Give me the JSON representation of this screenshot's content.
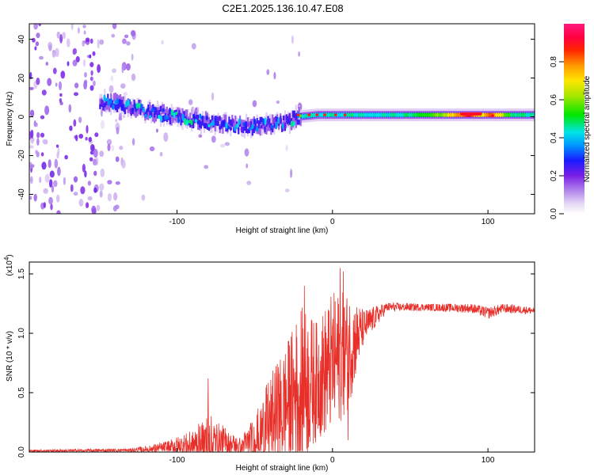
{
  "figure_title": "C2E1.2025.136.10.47.E08",
  "chart_data": [
    {
      "type": "heatmap",
      "title": "C2E1.2025.136.10.47.E08",
      "xlabel": "Height of straight line (km)",
      "ylabel": "Frequency (Hz)",
      "xlim": [
        -195,
        130
      ],
      "ylim": [
        -50,
        48
      ],
      "xticks": [
        -100,
        0,
        100
      ],
      "xtick_labels": [
        "-100",
        "0",
        "100"
      ],
      "yticks": [
        -40,
        -20,
        0,
        20,
        40
      ],
      "ytick_labels": [
        "-40",
        "-20",
        "0",
        "20",
        "40"
      ],
      "colorbar": {
        "label": "Normalized spectral amplitude",
        "range": [
          0,
          1
        ],
        "ticks": [
          0.0,
          0.2,
          0.4,
          0.6,
          0.8
        ],
        "tick_labels": [
          "0.0",
          "0.2",
          "0.4",
          "0.6",
          "0.8"
        ],
        "colormap": "rainbow: white-lavender -> purple -> blue -> cyan -> green -> yellow -> orange -> red -> magenta"
      },
      "ridge_center_freq_hz": [
        {
          "x": -145,
          "f": 8
        },
        {
          "x": -130,
          "f": 5
        },
        {
          "x": -115,
          "f": 2
        },
        {
          "x": -100,
          "f": 0
        },
        {
          "x": -85,
          "f": -2
        },
        {
          "x": -70,
          "f": -4
        },
        {
          "x": -55,
          "f": -5
        },
        {
          "x": -40,
          "f": -4
        },
        {
          "x": -30,
          "f": -3
        },
        {
          "x": -22,
          "f": 0
        },
        {
          "x": -10,
          "f": 1
        },
        {
          "x": 0,
          "f": 1
        },
        {
          "x": 50,
          "f": 1
        },
        {
          "x": 100,
          "f": 1
        },
        {
          "x": 130,
          "f": 1
        }
      ],
      "ridge_amplitude": [
        {
          "x": -145,
          "a": 0.3
        },
        {
          "x": -120,
          "a": 0.35
        },
        {
          "x": -90,
          "a": 0.35
        },
        {
          "x": -60,
          "a": 0.3
        },
        {
          "x": -30,
          "a": 0.3
        },
        {
          "x": -20,
          "a": 0.45
        },
        {
          "x": 0,
          "a": 0.45
        },
        {
          "x": 40,
          "a": 0.45
        },
        {
          "x": 70,
          "a": 0.6
        },
        {
          "x": 88,
          "a": 0.95
        },
        {
          "x": 96,
          "a": 0.7
        },
        {
          "x": 103,
          "a": 0.85
        },
        {
          "x": 115,
          "a": 0.5
        },
        {
          "x": 130,
          "a": 0.45
        }
      ]
    },
    {
      "type": "line",
      "xlabel": "Height of straight line (km)",
      "ylabel": "SNR (10 * v/v)",
      "y_multiplier": "(x10",
      "y_multiplier_exp": "4",
      "y_multiplier_close": ")",
      "xlim": [
        -195,
        130
      ],
      "ylim": [
        0,
        1.6
      ],
      "xticks": [
        -100,
        0,
        100
      ],
      "xtick_labels": [
        "-100",
        "0",
        "100"
      ],
      "yticks": [
        0,
        0.5,
        1.0,
        1.5
      ],
      "ytick_labels": [
        "0.0",
        "0.5",
        "1.0",
        "1.5"
      ],
      "color": "#e8302a",
      "series": [
        {
          "name": "SNR",
          "envelope": [
            {
              "x": -195,
              "base": 0.01,
              "noise": 0.01
            },
            {
              "x": -130,
              "base": 0.015,
              "noise": 0.015
            },
            {
              "x": -110,
              "base": 0.03,
              "noise": 0.05
            },
            {
              "x": -90,
              "base": 0.06,
              "noise": 0.12
            },
            {
              "x": -80,
              "base": 0.08,
              "noise": 0.25
            },
            {
              "x": -70,
              "base": 0.07,
              "noise": 0.15
            },
            {
              "x": -60,
              "base": 0.04,
              "noise": 0.08
            },
            {
              "x": -50,
              "base": 0.1,
              "noise": 0.2
            },
            {
              "x": -40,
              "base": 0.25,
              "noise": 0.4
            },
            {
              "x": -30,
              "base": 0.4,
              "noise": 0.5
            },
            {
              "x": -20,
              "base": 0.55,
              "noise": 0.7
            },
            {
              "x": -10,
              "base": 0.6,
              "noise": 0.5
            },
            {
              "x": 0,
              "base": 0.75,
              "noise": 0.6
            },
            {
              "x": 10,
              "base": 0.85,
              "noise": 0.5
            },
            {
              "x": 20,
              "base": 1.05,
              "noise": 0.15
            },
            {
              "x": 35,
              "base": 1.22,
              "noise": 0.04
            },
            {
              "x": 60,
              "base": 1.22,
              "noise": 0.03
            },
            {
              "x": 90,
              "base": 1.21,
              "noise": 0.04
            },
            {
              "x": 100,
              "base": 1.17,
              "noise": 0.05
            },
            {
              "x": 110,
              "base": 1.21,
              "noise": 0.04
            },
            {
              "x": 130,
              "base": 1.19,
              "noise": 0.03
            }
          ],
          "peaks": [
            {
              "x": -80,
              "y": 0.62
            },
            {
              "x": -18,
              "y": 1.4
            },
            {
              "x": 5,
              "y": 1.55
            },
            {
              "x": 7,
              "y": 1.52
            },
            {
              "x": 10,
              "y": 0.1
            }
          ]
        }
      ]
    }
  ]
}
